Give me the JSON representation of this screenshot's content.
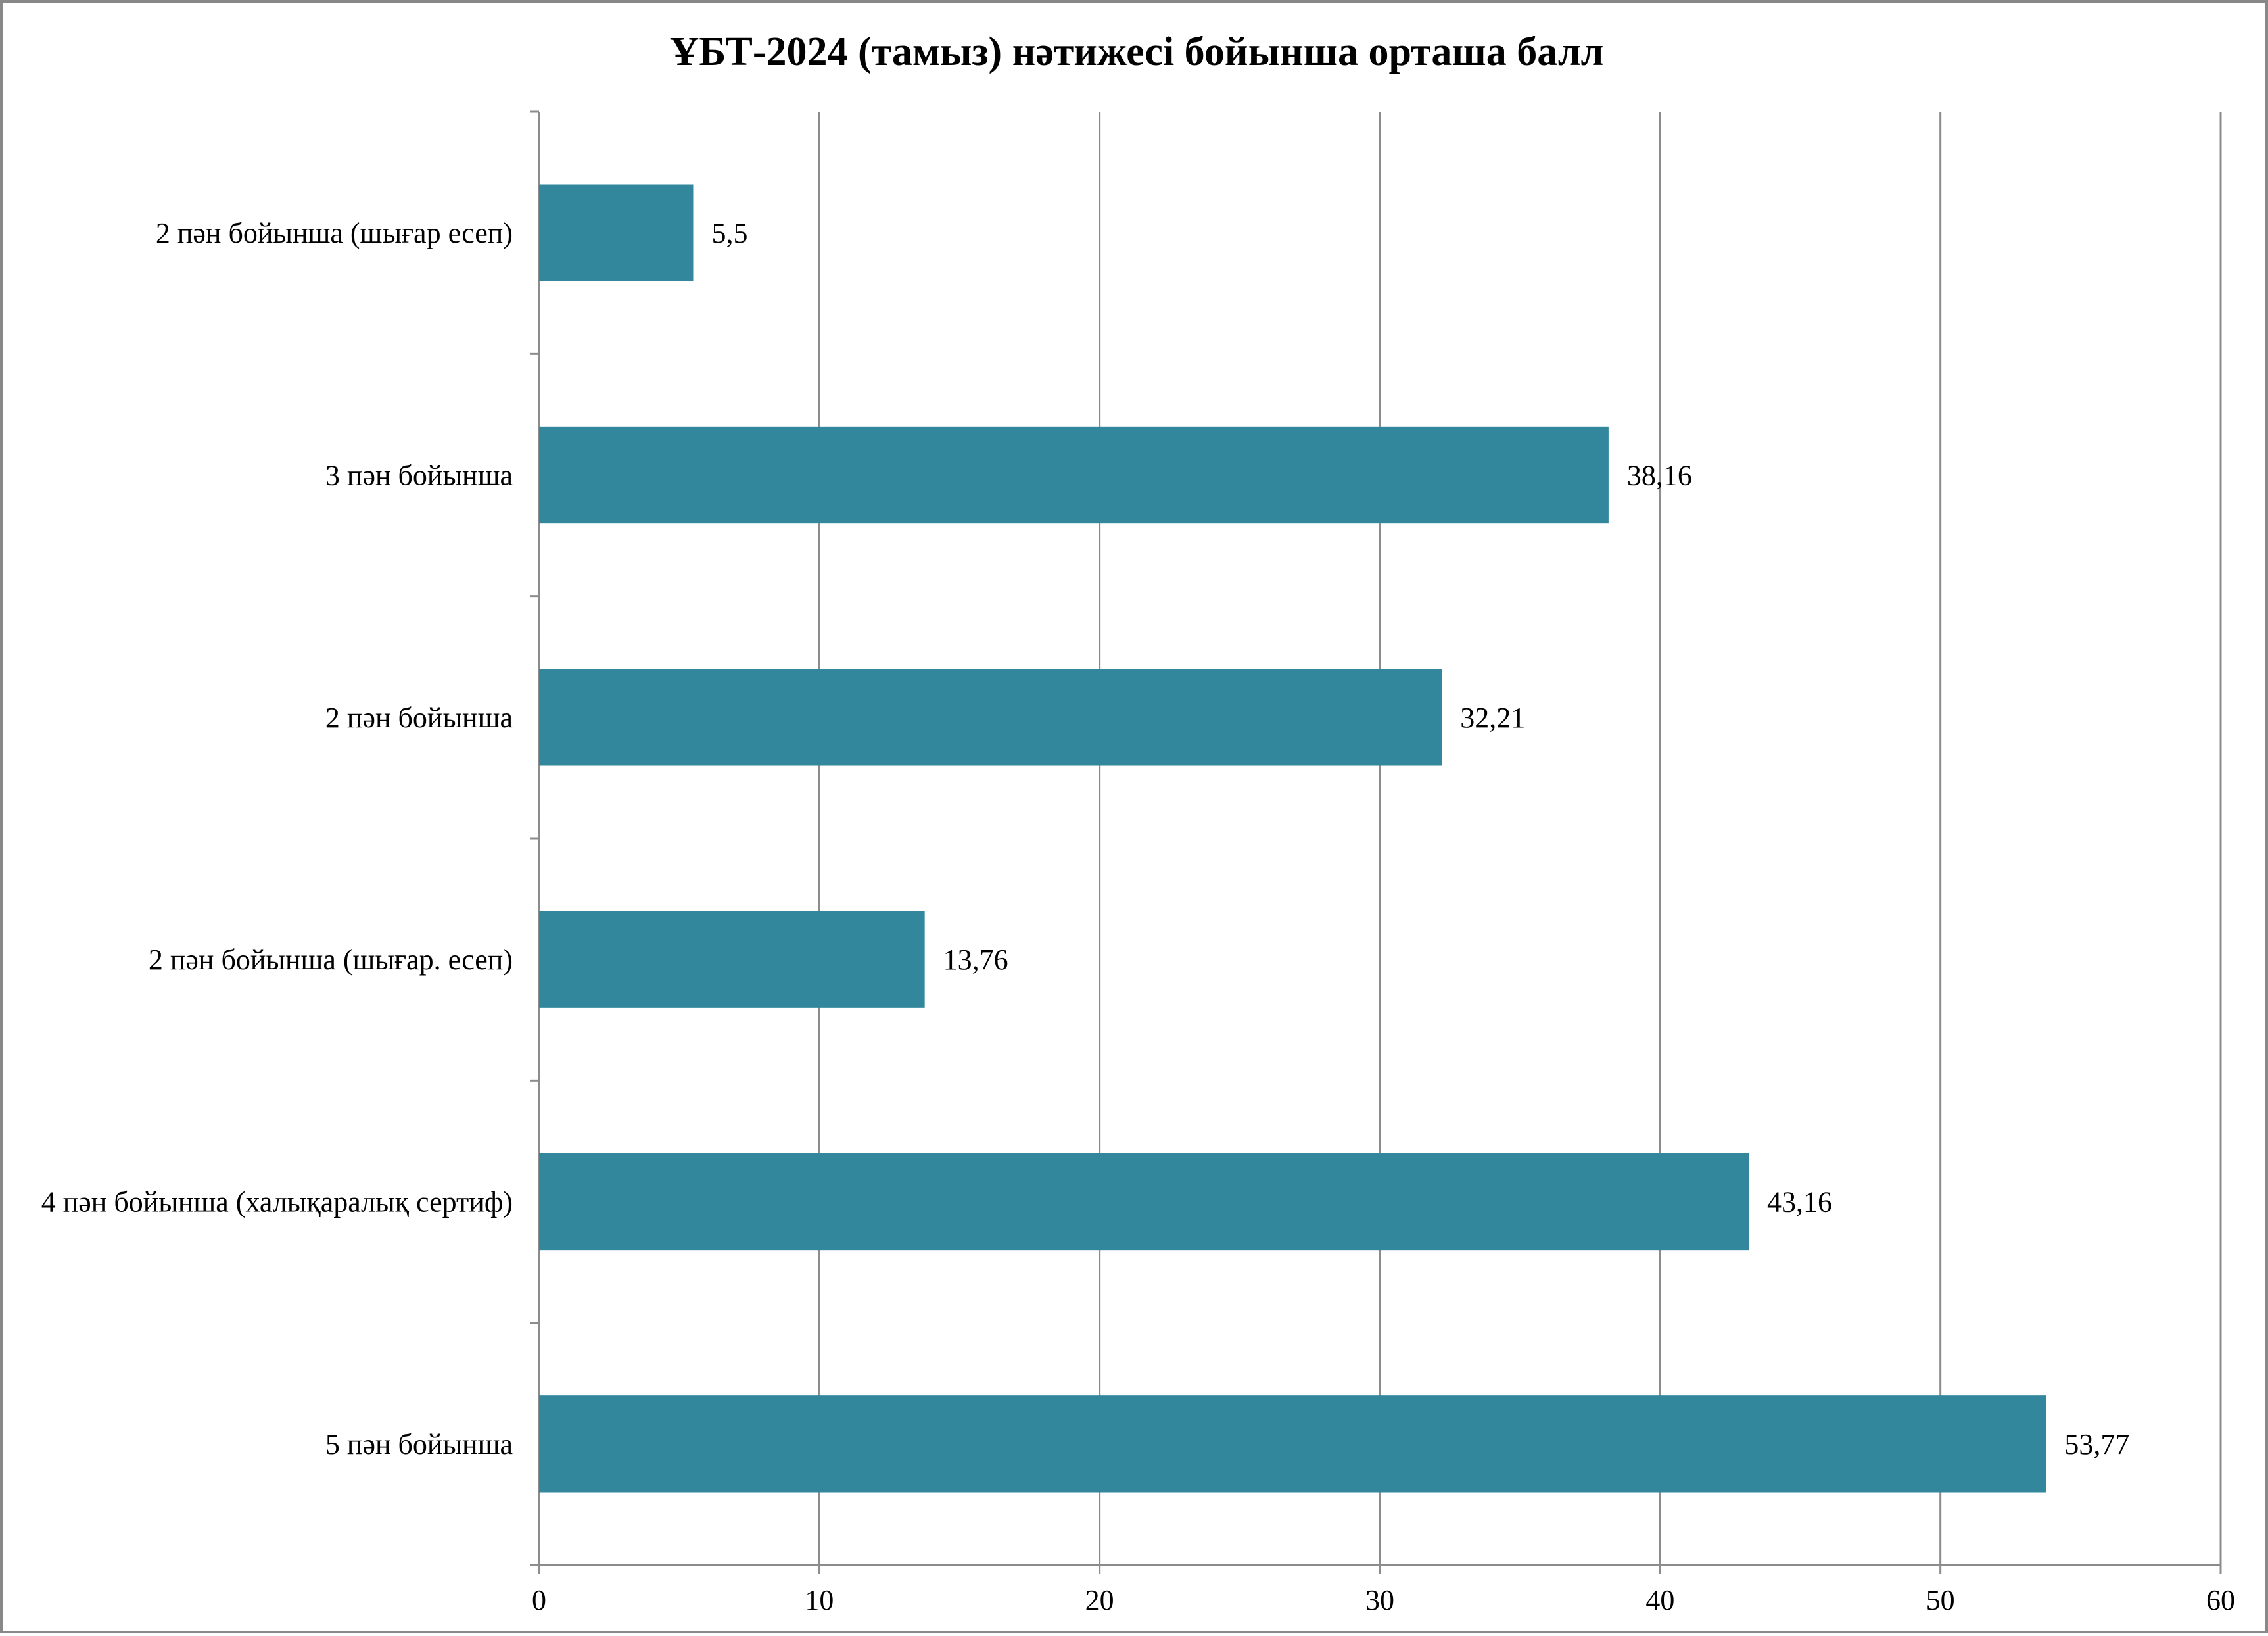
{
  "chart_data": {
    "type": "bar",
    "orientation": "horizontal",
    "title": "ҰБТ-2024 (тамыз) нәтижесі бойынша орташа балл",
    "xlabel": "",
    "ylabel": "",
    "categories": [
      "2 пән бойынша  (шығар есеп)",
      "3 пән бойынша",
      "2 пән бойынша",
      "2 пән бойынша (шығар. есеп)",
      "4 пән бойынша (халықаралық сертиф)",
      "5 пән бойынша"
    ],
    "values": [
      5.5,
      38.16,
      32.21,
      13.76,
      43.16,
      53.77
    ],
    "data_labels": [
      "5,5",
      "38,16",
      "32,21",
      "13,76",
      "43,16",
      "53,77"
    ],
    "xlim": [
      0,
      60
    ],
    "x_ticks": [
      0,
      10,
      20,
      30,
      40,
      50,
      60
    ],
    "grid": "vertical",
    "legend": "none",
    "bar_color": "#32879d",
    "grid_color": "#8c8c8c",
    "axis_color": "#8c8c8c"
  }
}
